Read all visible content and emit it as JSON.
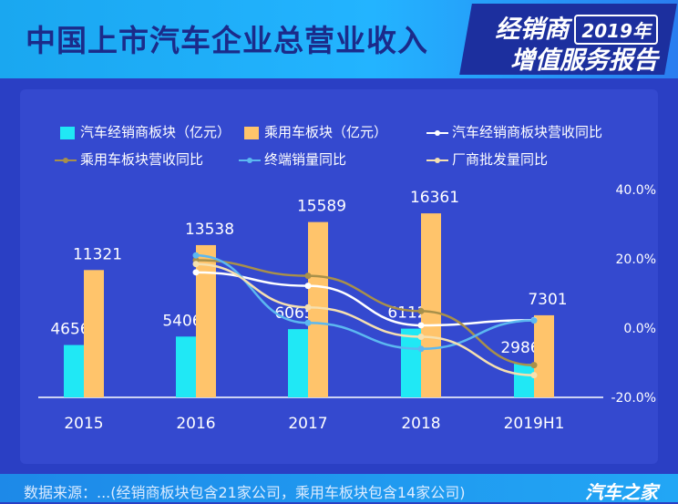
{
  "header": {
    "title": "中国上市汽车企业总营业收入",
    "badge_line1": "经销商",
    "badge_year": "2019年",
    "badge_line2": "增值服务报告"
  },
  "footer": {
    "source": "数据来源：...(经销商板块包含21家公司，乘用车板块包含14家公司)",
    "brand": "汽车之家"
  },
  "colors": {
    "dealer_bar": "#20e8f5",
    "passenger_bar": "#ffc46b",
    "dealer_yoy": "#ffffff",
    "passenger_yoy": "#a8904a",
    "terminal_sales_yoy": "#5cb8f0",
    "wholesale_yoy": "#f5e0b0"
  },
  "chart_data": {
    "type": "bar",
    "categories": [
      "2015",
      "2016",
      "2017",
      "2018",
      "2019H1"
    ],
    "series": [
      {
        "name": "汽车经销商板块（亿元）",
        "kind": "bar",
        "values": [
          4656,
          5406,
          6065,
          6112,
          2986
        ]
      },
      {
        "name": "乘用车板块（亿元）",
        "kind": "bar",
        "values": [
          11321,
          13538,
          15589,
          16361,
          7301
        ]
      },
      {
        "name": "汽车经销商板块营收同比",
        "kind": "line",
        "axis": "right",
        "values": [
          null,
          16.1,
          12.2,
          0.8,
          2.3
        ]
      },
      {
        "name": "乘用车板块营收同比",
        "kind": "line",
        "axis": "right",
        "values": [
          null,
          19.6,
          15.1,
          4.9,
          -10.7
        ]
      },
      {
        "name": "终端销量同比",
        "kind": "line",
        "axis": "right",
        "values": [
          null,
          21.0,
          1.5,
          -6.0,
          2.2
        ]
      },
      {
        "name": "厂商批发量同比",
        "kind": "line",
        "axis": "right",
        "values": [
          null,
          18.5,
          6.0,
          -2.5,
          -13.6
        ]
      }
    ],
    "y2_ticks": [
      "40.0%",
      "20.0%",
      "0.0%",
      "-20.0%"
    ],
    "y2lim": [
      -20,
      40
    ],
    "ylim": [
      0,
      20000
    ],
    "legend": "top"
  }
}
